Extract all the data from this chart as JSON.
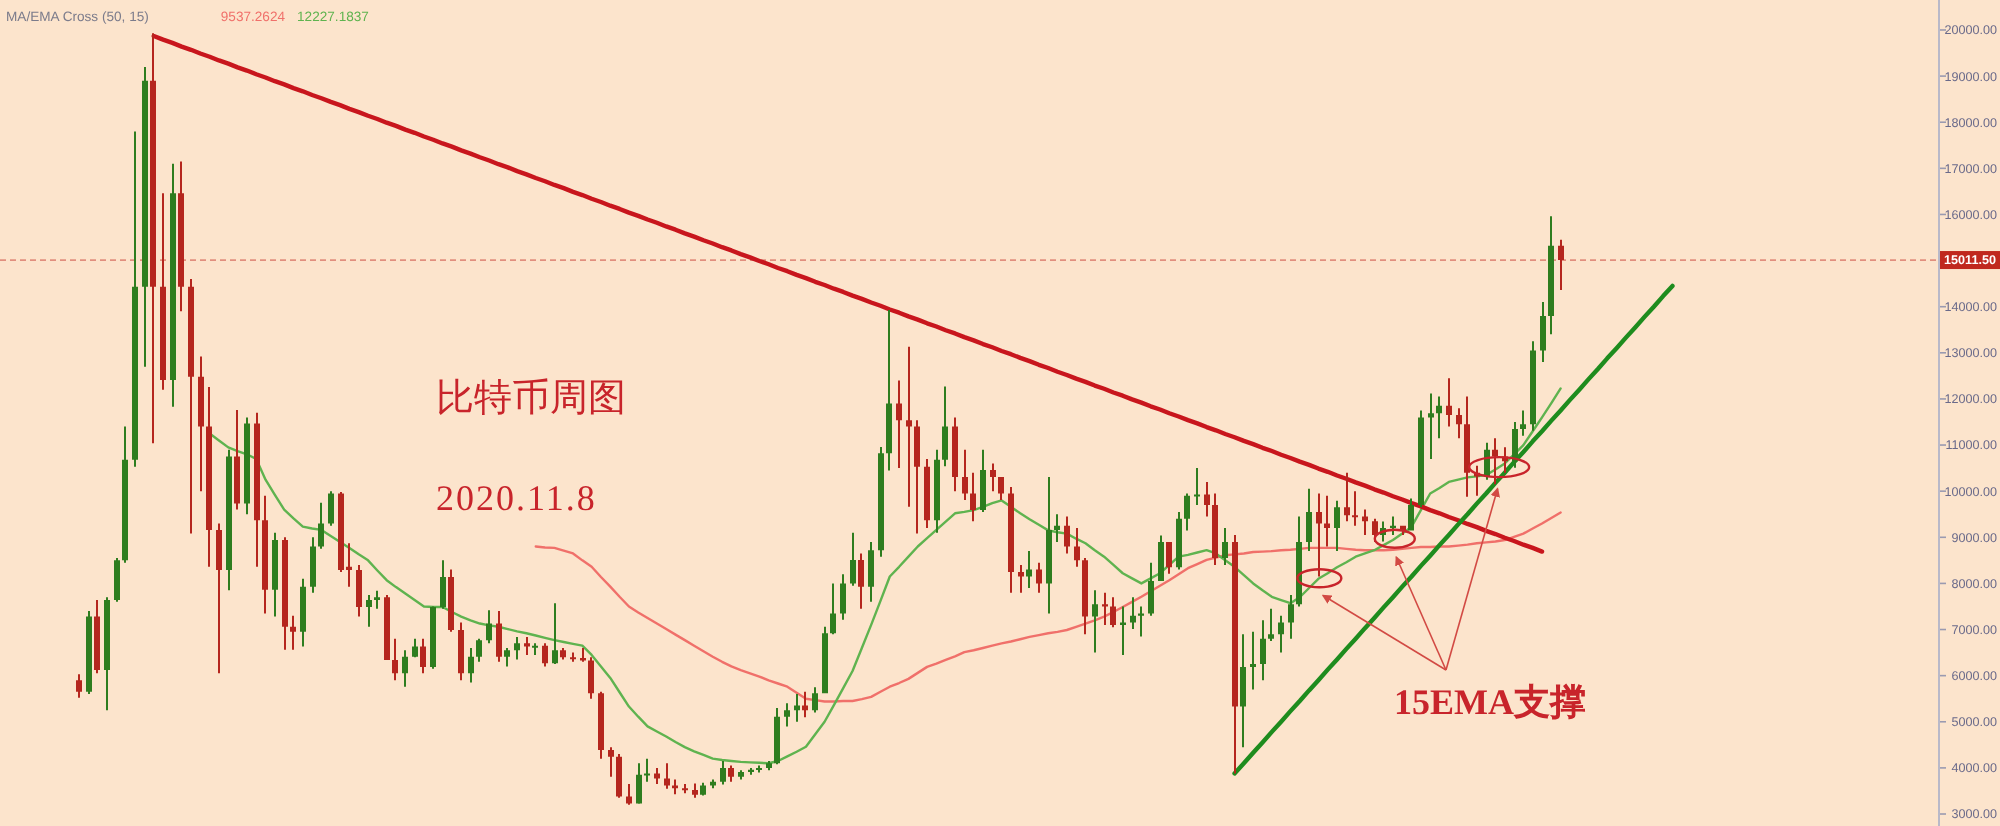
{
  "chart_data": {
    "type": "candlestick",
    "title": "比特币周图",
    "subtitle": "2020.11.8",
    "legend_title": "MA/EMA Cross (50, 15)",
    "tick_labels": "y",
    "categories": [
      null,
      null,
      null,
      null,
      null,
      null,
      null,
      null,
      null,
      null,
      null,
      null,
      null,
      null,
      null,
      null,
      null,
      null,
      null,
      null,
      null,
      null,
      null,
      null,
      null,
      null,
      null,
      null,
      null,
      null,
      null,
      null,
      null,
      null,
      null,
      null,
      null,
      null,
      null,
      null,
      null,
      null,
      null,
      null,
      null,
      null,
      null,
      null,
      null,
      null,
      null,
      null,
      null,
      null,
      null,
      null,
      null,
      null,
      null,
      null,
      null,
      null,
      null,
      null,
      null,
      null,
      null,
      null,
      null,
      null,
      null,
      null,
      null,
      null,
      null,
      null,
      null,
      null,
      null,
      null,
      null,
      null,
      null,
      null,
      null,
      null,
      null,
      null,
      null,
      null,
      null,
      null,
      null,
      null,
      null,
      null,
      null,
      null,
      null,
      null,
      null,
      null,
      null,
      null,
      null,
      null,
      null,
      null,
      null,
      null,
      null,
      null,
      null,
      null,
      null,
      null,
      null,
      null,
      null,
      null,
      null,
      null,
      null,
      null,
      null,
      null,
      null,
      null,
      null,
      null,
      null,
      null,
      null,
      null,
      null,
      null,
      null,
      null,
      null,
      null,
      null,
      null,
      null,
      null,
      null,
      null,
      null,
      null,
      null,
      null,
      null,
      null,
      null,
      null,
      null,
      null,
      null,
      null,
      null,
      null,
      null,
      null,
      null,
      null,
      null,
      null,
      null,
      null,
      null,
      null,
      null,
      null,
      null,
      null,
      null,
      null,
      null,
      null,
      null,
      null,
      null,
      null,
      null,
      null,
      null,
      null,
      null,
      null,
      null,
      null,
      null,
      null,
      null,
      null,
      null,
      null,
      null,
      null,
      null,
      null,
      null,
      null,
      null,
      null,
      null,
      null,
      null,
      null
    ],
    "ohlc": [
      null,
      null,
      null,
      null,
      null,
      null,
      null,
      null,
      [
        5900,
        6030,
        5520,
        5650
      ],
      [
        5650,
        7400,
        5600,
        7280
      ],
      [
        7280,
        7640,
        6050,
        6120
      ],
      [
        6120,
        7700,
        5250,
        7640
      ],
      [
        7640,
        8550,
        7600,
        8500
      ],
      [
        8500,
        11400,
        8450,
        10680
      ],
      [
        10680,
        17800,
        10530,
        14430
      ],
      [
        14430,
        19200,
        12700,
        18900
      ],
      [
        18900,
        19930,
        11040,
        14430
      ],
      [
        14430,
        16460,
        12200,
        12410
      ],
      [
        12410,
        17100,
        11830,
        16460
      ],
      [
        16460,
        17150,
        13900,
        14430
      ],
      [
        14430,
        14600,
        9080,
        12480
      ],
      [
        12480,
        12920,
        10000,
        11400
      ],
      [
        11400,
        12260,
        8360,
        9160
      ],
      [
        9160,
        9300,
        6050,
        8290
      ],
      [
        8290,
        10900,
        7850,
        10750
      ],
      [
        10750,
        11760,
        9600,
        9735
      ],
      [
        9735,
        11600,
        9500,
        11470
      ],
      [
        11470,
        11700,
        8360,
        9370
      ],
      [
        9370,
        9900,
        7350,
        7860
      ],
      [
        7860,
        9100,
        7280,
        8940
      ],
      [
        8940,
        9000,
        6560,
        7060
      ],
      [
        7060,
        7300,
        6560,
        6950
      ],
      [
        6950,
        8100,
        6630,
        7930
      ],
      [
        7930,
        9000,
        7800,
        8800
      ],
      [
        8800,
        9750,
        8750,
        9300
      ],
      [
        9300,
        10000,
        9250,
        9950
      ],
      [
        9950,
        9980,
        8250,
        8290
      ],
      [
        8360,
        8870,
        7930,
        8290
      ],
      [
        8290,
        8400,
        7280,
        7490
      ],
      [
        7490,
        7750,
        7060,
        7640
      ],
      [
        7640,
        7840,
        7450,
        7700
      ],
      [
        7700,
        7750,
        6340,
        6340
      ],
      [
        6340,
        6800,
        5900,
        6050
      ],
      [
        6050,
        6550,
        5760,
        6410
      ],
      [
        6410,
        6800,
        6400,
        6630
      ],
      [
        6630,
        6800,
        6050,
        6190
      ],
      [
        6190,
        7500,
        6150,
        7490
      ],
      [
        7490,
        8500,
        7450,
        8140
      ],
      [
        8140,
        8300,
        6950,
        6990
      ],
      [
        6990,
        7150,
        5900,
        6050
      ],
      [
        6050,
        6600,
        5850,
        6410
      ],
      [
        6410,
        6800,
        6300,
        6770
      ],
      [
        6770,
        7420,
        6700,
        7130
      ],
      [
        7130,
        7400,
        6300,
        6410
      ],
      [
        6410,
        6600,
        6200,
        6550
      ],
      [
        6550,
        6840,
        6350,
        6700
      ],
      [
        6700,
        6840,
        6450,
        6630
      ],
      [
        6630,
        6700,
        6450,
        6650
      ],
      [
        6650,
        6700,
        6200,
        6270
      ],
      [
        6270,
        7570,
        6250,
        6550
      ],
      [
        6550,
        6600,
        6350,
        6400
      ],
      [
        6400,
        6500,
        6300,
        6380
      ],
      [
        6380,
        6600,
        6300,
        6330
      ],
      [
        6330,
        6400,
        5500,
        5620
      ],
      [
        5620,
        5650,
        4200,
        4390
      ],
      [
        4390,
        4450,
        3810,
        4240
      ],
      [
        4240,
        4300,
        3350,
        3380
      ],
      [
        3380,
        3650,
        3200,
        3230
      ],
      [
        3230,
        4100,
        3220,
        3850
      ],
      [
        3850,
        4200,
        3700,
        3880
      ],
      [
        3880,
        4000,
        3650,
        3770
      ],
      [
        3770,
        4100,
        3550,
        3620
      ],
      [
        3620,
        3750,
        3430,
        3560
      ],
      [
        3560,
        3650,
        3450,
        3520
      ],
      [
        3520,
        3660,
        3350,
        3420
      ],
      [
        3420,
        3680,
        3400,
        3620
      ],
      [
        3620,
        3750,
        3560,
        3700
      ],
      [
        3700,
        4150,
        3640,
        4000
      ],
      [
        4000,
        4050,
        3700,
        3810
      ],
      [
        3810,
        3950,
        3750,
        3910
      ],
      [
        3910,
        4000,
        3850,
        3960
      ],
      [
        3960,
        4050,
        3900,
        4000
      ],
      [
        4000,
        4150,
        3950,
        4100
      ],
      [
        4100,
        5300,
        4080,
        5110
      ],
      [
        5110,
        5400,
        4900,
        5250
      ],
      [
        5250,
        5600,
        5000,
        5350
      ],
      [
        5350,
        5650,
        5100,
        5250
      ],
      [
        5250,
        5750,
        5200,
        5620
      ],
      [
        5620,
        7060,
        5620,
        6920
      ],
      [
        6920,
        8000,
        6900,
        7350
      ],
      [
        7350,
        8200,
        7210,
        8000
      ],
      [
        8000,
        9100,
        7950,
        8510
      ],
      [
        8510,
        8650,
        7450,
        7930
      ],
      [
        7930,
        8900,
        7600,
        8720
      ],
      [
        8720,
        10960,
        8580,
        10820
      ],
      [
        10820,
        13930,
        10450,
        11900
      ],
      [
        11900,
        12400,
        10500,
        11540
      ],
      [
        11540,
        13130,
        9660,
        11400
      ],
      [
        11400,
        11540,
        9080,
        10530
      ],
      [
        10530,
        10700,
        9200,
        9370
      ],
      [
        9370,
        10900,
        9100,
        10680
      ],
      [
        10680,
        12270,
        10540,
        11400
      ],
      [
        11400,
        11600,
        10000,
        10310
      ],
      [
        10310,
        10900,
        9810,
        9950
      ],
      [
        9950,
        10400,
        9350,
        9590
      ],
      [
        9590,
        10900,
        9550,
        10460
      ],
      [
        10460,
        10600,
        10000,
        10310
      ],
      [
        10310,
        10310,
        9810,
        9950
      ],
      [
        9950,
        10090,
        7800,
        8250
      ],
      [
        8250,
        8400,
        7800,
        8150
      ],
      [
        8150,
        8700,
        7900,
        8300
      ],
      [
        8300,
        8450,
        7800,
        8000
      ],
      [
        8000,
        10310,
        7350,
        9160
      ],
      [
        9160,
        9500,
        8900,
        9250
      ],
      [
        9250,
        9450,
        8650,
        8800
      ],
      [
        8800,
        9200,
        8360,
        8500
      ],
      [
        8500,
        8550,
        6900,
        7280
      ],
      [
        7280,
        7850,
        6500,
        7550
      ],
      [
        7550,
        7800,
        7100,
        7500
      ],
      [
        7500,
        7700,
        7050,
        7100
      ],
      [
        7100,
        7500,
        6450,
        7150
      ],
      [
        7150,
        7700,
        7010,
        7300
      ],
      [
        7300,
        7500,
        6850,
        7350
      ],
      [
        7350,
        8450,
        7300,
        8050
      ],
      [
        8050,
        9040,
        8050,
        8900
      ],
      [
        8900,
        8900,
        8210,
        8350
      ],
      [
        8350,
        9550,
        8300,
        9400
      ],
      [
        9400,
        9950,
        9150,
        9900
      ],
      [
        9900,
        10500,
        9700,
        9930
      ],
      [
        9930,
        10200,
        9450,
        9700
      ],
      [
        9700,
        9950,
        8400,
        8550
      ],
      [
        8550,
        9200,
        8400,
        8900
      ],
      [
        8900,
        9050,
        3880,
        5330
      ],
      [
        5330,
        6900,
        4450,
        6190
      ],
      [
        6190,
        6950,
        5700,
        6250
      ],
      [
        6250,
        7200,
        5900,
        6800
      ],
      [
        6800,
        7450,
        6750,
        6900
      ],
      [
        6900,
        7300,
        6500,
        7150
      ],
      [
        7150,
        7750,
        6800,
        7550
      ],
      [
        7550,
        9450,
        7500,
        8900
      ],
      [
        8900,
        10050,
        8700,
        9550
      ],
      [
        9550,
        9950,
        8150,
        9300
      ],
      [
        9300,
        9900,
        8800,
        9200
      ],
      [
        9200,
        9790,
        8700,
        9650
      ],
      [
        9650,
        10400,
        9350,
        9480
      ],
      [
        9480,
        10000,
        9250,
        9450
      ],
      [
        9450,
        9600,
        9050,
        9350
      ],
      [
        9350,
        9400,
        8900,
        9050
      ],
      [
        9050,
        9340,
        8910,
        9200
      ],
      [
        9200,
        9450,
        9050,
        9250
      ],
      [
        9250,
        9250,
        9050,
        9150
      ],
      [
        9150,
        9840,
        9150,
        9700
      ],
      [
        9700,
        11750,
        9650,
        11600
      ],
      [
        11600,
        12120,
        10700,
        11690
      ],
      [
        11690,
        12050,
        11150,
        11850
      ],
      [
        11850,
        12450,
        11400,
        11650
      ],
      [
        11650,
        11800,
        11150,
        11450
      ],
      [
        11450,
        12050,
        9880,
        10400
      ],
      [
        10400,
        10550,
        9900,
        10320
      ],
      [
        10320,
        11050,
        10250,
        10900
      ],
      [
        10900,
        11150,
        10150,
        10750
      ],
      [
        10750,
        10950,
        10400,
        10650
      ],
      [
        10650,
        11500,
        10510,
        11350
      ],
      [
        11350,
        11750,
        11200,
        11450
      ],
      [
        11450,
        13250,
        11310,
        13050
      ],
      [
        13050,
        14100,
        12800,
        13800
      ],
      [
        13800,
        15960,
        13400,
        15320
      ],
      [
        15320,
        15450,
        14360,
        15011.5
      ],
      null,
      null,
      null,
      null,
      null,
      null,
      null,
      null,
      null,
      null,
      null,
      null,
      null,
      null,
      null,
      null,
      null,
      null,
      null,
      null,
      null,
      null,
      null,
      null,
      null,
      null,
      null,
      null,
      null,
      null,
      null,
      null,
      null,
      null,
      null,
      null,
      null,
      null,
      null,
      null
    ],
    "colors": [
      null,
      null,
      null,
      null,
      null,
      null,
      null,
      null,
      "#b5261e",
      "#2e7d1f",
      "#b5261e",
      "#2e7d1f",
      "#2e7d1f",
      "#2e7d1f",
      "#2e7d1f",
      "#2e7d1f",
      "#b5261e",
      "#b5261e",
      "#2e7d1f",
      "#b5261e",
      "#b5261e",
      "#b5261e",
      "#b5261e",
      "#b5261e",
      "#2e7d1f",
      "#b5261e",
      "#2e7d1f",
      "#b5261e",
      "#b5261e",
      "#2e7d1f",
      "#b5261e",
      "#b5261e",
      "#2e7d1f",
      "#2e7d1f",
      "#2e7d1f",
      "#2e7d1f",
      "#b5261e",
      "#b5261e",
      "#b5261e",
      "#2e7d1f",
      "#2e7d1f",
      "#b5261e",
      "#b5261e",
      "#2e7d1f",
      "#2e7d1f",
      "#b5261e",
      "#2e7d1f",
      "#2e7d1f",
      "#b5261e",
      "#b5261e",
      "#2e7d1f",
      "#2e7d1f",
      "#2e7d1f",
      "#b5261e",
      "#2e7d1f",
      "#2e7d1f",
      "#b5261e",
      "#2e7d1f",
      "#b5261e",
      "#2e7d1f",
      "#b5261e",
      "#b5261e",
      "#b5261e",
      "#b5261e",
      "#b5261e",
      "#b5261e",
      "#b5261e",
      "#b5261e",
      "#2e7d1f",
      "#2e7d1f",
      "#b5261e",
      "#b5261e",
      "#b5261e",
      "#b5261e",
      "#b5261e",
      "#2e7d1f",
      "#2e7d1f",
      "#2e7d1f",
      "#b5261e",
      "#2e7d1f",
      "#2e7d1f",
      "#2e7d1f",
      "#2e7d1f",
      "#2e7d1f",
      "#2e7d1f",
      "#2e7d1f",
      "#b5261e",
      "#2e7d1f",
      "#2e7d1f",
      "#2e7d1f",
      "#2e7d1f",
      "#2e7d1f",
      "#b5261e",
      "#2e7d1f",
      "#2e7d1f",
      "#2e7d1f",
      "#b5261e",
      "#b5261e",
      "#b5261e",
      "#b5261e",
      "#2e7d1f",
      "#2e7d1f",
      "#b5261e",
      "#b5261e",
      "#b5261e",
      "#2e7d1f",
      "#b5261e",
      "#b5261e",
      "#b5261e",
      "#b5261e",
      "#2e7d1f",
      "#b5261e",
      "#2e7d1f",
      "#2e7d1f",
      "#b5261e",
      "#b5261e",
      "#b5261e",
      "#2e7d1f",
      "#b5261e",
      "#b5261e",
      "#2e7d1f",
      "#2e7d1f",
      "#2e7d1f",
      "#2e7d1f",
      "#2e7d1f",
      "#b5261e",
      "#2e7d1f",
      "#2e7d1f",
      "#2e7d1f",
      "#b5261e",
      "#b5261e",
      "#2e7d1f",
      "#b5261e",
      "#2e7d1f",
      "#2e7d1f",
      "#2e7d1f",
      "#2e7d1f",
      "#2e7d1f",
      "#2e7d1f",
      "#2e7d1f",
      "#2e7d1f",
      "#b5261e",
      "#b5261e",
      "#2e7d1f",
      "#b5261e",
      "#b5261e",
      "#b5261e",
      "#b5261e",
      "#2e7d1f",
      "#2e7d1f",
      "#b5261e",
      "#2e7d1f",
      "#2e7d1f",
      "#2e7d1f",
      "#2e7d1f",
      "#b5261e",
      "#b5261e",
      "#b5261e",
      "#b5261e",
      "#2e7d1f",
      "#b5261e",
      "#b5261e",
      "#2e7d1f",
      "#2e7d1f",
      "#2e7d1f",
      "#2e7d1f",
      "#2e7d1f",
      "#b5261e",
      null,
      null,
      null,
      null,
      null,
      null,
      null,
      null,
      null,
      null,
      null,
      null,
      null,
      null,
      null,
      null,
      null,
      null,
      null,
      null,
      null,
      null,
      null,
      null,
      null,
      null,
      null,
      null,
      null,
      null,
      null,
      null,
      null,
      null,
      null,
      null,
      null,
      null,
      null,
      null
    ],
    "series": [
      {
        "type": "line",
        "name": "9537.2624",
        "color": "#f0706a",
        "values": [
          null,
          null,
          null,
          null,
          null,
          null,
          null,
          null,
          null,
          null,
          null,
          null,
          null,
          null,
          null,
          null,
          null,
          null,
          null,
          null,
          null,
          null,
          null,
          null,
          null,
          null,
          null,
          null,
          null,
          null,
          null,
          null,
          null,
          null,
          null,
          null,
          null,
          null,
          null,
          null,
          null,
          null,
          null,
          null,
          null,
          null,
          null,
          null,
          null,
          null,
          null,
          null,
          null,
          null,
          null,
          null,
          null,
          8800,
          8780,
          8770,
          8710,
          8650,
          8500,
          8360,
          8140,
          7930,
          7710,
          7500,
          7370,
          7250,
          7130,
          7010,
          6890,
          6770,
          6650,
          6530,
          6410,
          6300,
          6200,
          6120,
          6050,
          5980,
          5900,
          5830,
          5760,
          5630,
          5500,
          5470,
          5440,
          5440,
          5450,
          5450,
          5490,
          5540,
          5650,
          5760,
          5840,
          5930,
          6060,
          6190,
          6260,
          6340,
          6420,
          6510,
          6550,
          6600,
          6650,
          6700,
          6740,
          6790,
          6840,
          6880,
          6920,
          6950,
          6990,
          7060,
          7130,
          7200,
          7280,
          7380,
          7490,
          7600,
          7710,
          7830,
          7950,
          8070,
          8200,
          8330,
          8420,
          8510,
          8560,
          8610,
          8630,
          8650,
          8680,
          8690,
          8700,
          8720,
          8730,
          8750,
          8770,
          8770,
          8770,
          8770,
          8750,
          8730,
          8720,
          8720,
          8720,
          8730,
          8750,
          8770,
          8790,
          8790,
          8800,
          8800,
          8820,
          8840,
          8870,
          8890,
          8910,
          8940,
          9010,
          9080,
          9190,
          9300,
          9420,
          9537,
          null,
          null,
          null,
          null,
          null,
          null,
          null,
          null,
          null,
          null,
          null,
          null,
          null,
          null,
          null,
          null,
          null,
          null,
          null,
          null,
          null,
          null,
          null,
          null,
          null,
          null,
          null,
          null,
          null,
          null,
          null,
          null,
          null,
          null,
          null,
          null,
          null,
          null,
          null,
          null
        ]
      },
      {
        "type": "line",
        "name": "12227.1837",
        "color": "#5fb34f",
        "values": [
          null,
          null,
          null,
          null,
          null,
          null,
          null,
          null,
          null,
          null,
          null,
          null,
          null,
          null,
          null,
          null,
          null,
          null,
          null,
          null,
          null,
          null,
          11250,
          11100,
          10950,
          10870,
          10800,
          10700,
          10250,
          9920,
          9600,
          9410,
          9230,
          9190,
          9160,
          9030,
          8900,
          8770,
          8630,
          8500,
          8280,
          8070,
          7920,
          7780,
          7640,
          7500,
          7490,
          7490,
          7380,
          7280,
          7200,
          7130,
          7090,
          7060,
          7010,
          6960,
          6920,
          6870,
          6820,
          6770,
          6730,
          6690,
          6650,
          6450,
          6200,
          5950,
          5640,
          5330,
          5110,
          4900,
          4790,
          4680,
          4560,
          4450,
          4360,
          4280,
          4200,
          4170,
          4150,
          4130,
          4120,
          4110,
          4100,
          4150,
          4250,
          4350,
          4460,
          4730,
          5000,
          5360,
          5730,
          6100,
          6600,
          7100,
          7620,
          8150,
          8360,
          8580,
          8800,
          8980,
          9160,
          9340,
          9520,
          9550,
          9590,
          9660,
          9740,
          9800,
          9660,
          9520,
          9390,
          9270,
          9150,
          9110,
          9080,
          8970,
          8870,
          8720,
          8580,
          8400,
          8220,
          8110,
          8000,
          8110,
          8220,
          8400,
          8580,
          8620,
          8670,
          8720,
          8650,
          8500,
          8360,
          8180,
          8000,
          7850,
          7710,
          7640,
          7570,
          7700,
          7900,
          8100,
          8220,
          8350,
          8460,
          8580,
          8650,
          8720,
          8830,
          8940,
          9080,
          9230,
          9590,
          9950,
          10070,
          10200,
          10250,
          10300,
          10320,
          10350,
          10470,
          10600,
          10800,
          11000,
          11300,
          11600,
          11910,
          12227,
          null,
          null,
          null,
          null,
          null,
          null,
          null,
          null,
          null,
          null,
          null,
          null,
          null,
          null,
          null,
          null,
          null,
          null,
          null,
          null,
          null,
          null,
          null,
          null,
          null,
          null,
          null,
          null,
          null,
          null,
          null,
          null,
          null,
          null,
          null,
          null,
          null,
          null,
          null,
          null
        ]
      },
      {
        "type": "line",
        "color": "#c8161d",
        "values": [
          null,
          null,
          null,
          null,
          null,
          null,
          null,
          null,
          null,
          null,
          null,
          null,
          null,
          null,
          null,
          null,
          19870,
          19790,
          19720,
          19640,
          19570,
          19490,
          19420,
          19340,
          19270,
          19190,
          19120,
          19040,
          18970,
          18890,
          18820,
          18740,
          18670,
          18590,
          18520,
          18440,
          18370,
          18290,
          18220,
          18140,
          18070,
          17990,
          17920,
          17840,
          17770,
          17690,
          17620,
          17540,
          17470,
          17390,
          17320,
          17240,
          17170,
          17090,
          17020,
          16940,
          16870,
          16790,
          16720,
          16640,
          16570,
          16490,
          16420,
          16340,
          16270,
          16190,
          16120,
          16040,
          15970,
          15890,
          15820,
          15740,
          15670,
          15590,
          15520,
          15440,
          15370,
          15290,
          15220,
          15140,
          15070,
          14990,
          14920,
          14840,
          14770,
          14690,
          14620,
          14540,
          14470,
          14390,
          14320,
          14240,
          14170,
          14090,
          14020,
          13940,
          13870,
          13790,
          13720,
          13640,
          13570,
          13490,
          13420,
          13340,
          13270,
          13190,
          13120,
          13040,
          12970,
          12890,
          12820,
          12740,
          12670,
          12590,
          12520,
          12440,
          12370,
          12290,
          12220,
          12140,
          12070,
          11990,
          11920,
          11840,
          11770,
          11690,
          11620,
          11540,
          11470,
          11390,
          11320,
          11240,
          11170,
          11090,
          11020,
          10940,
          10870,
          10790,
          10720,
          10640,
          10570,
          10490,
          10420,
          10340,
          10270,
          10190,
          10120,
          10040,
          9970,
          9890,
          9820,
          9740,
          9670,
          9590,
          9520,
          9440,
          9370,
          9290,
          9220,
          9140,
          9070,
          8990,
          8920,
          8840,
          8770,
          8690,
          null,
          null,
          null,
          null,
          null,
          null,
          null,
          null,
          null,
          null,
          null,
          null,
          null,
          null,
          null,
          null,
          null,
          null,
          null,
          null,
          null,
          null,
          null,
          null,
          null,
          null,
          null,
          null,
          null,
          null,
          null,
          null,
          null,
          null,
          null,
          null,
          null,
          null,
          null,
          null,
          null,
          null
        ]
      },
      {
        "type": "line",
        "color": "#1e8c1e",
        "values": [
          null,
          null,
          null,
          null,
          null,
          null,
          null,
          null,
          null,
          null,
          null,
          null,
          null,
          null,
          null,
          null,
          null,
          null,
          null,
          null,
          null,
          null,
          null,
          null,
          null,
          null,
          null,
          null,
          null,
          null,
          null,
          null,
          null,
          null,
          null,
          null,
          null,
          null,
          null,
          null,
          null,
          null,
          null,
          null,
          null,
          null,
          null,
          null,
          null,
          null,
          null,
          null,
          null,
          null,
          null,
          null,
          null,
          null,
          null,
          null,
          null,
          null,
          null,
          null,
          null,
          null,
          null,
          null,
          null,
          null,
          null,
          null,
          null,
          null,
          null,
          null,
          null,
          null,
          null,
          null,
          null,
          null,
          null,
          null,
          null,
          null,
          null,
          null,
          null,
          null,
          null,
          null,
          null,
          null,
          null,
          null,
          null,
          null,
          null,
          null,
          null,
          null,
          null,
          null,
          null,
          null,
          null,
          null,
          null,
          null,
          null,
          null,
          null,
          null,
          null,
          null,
          null,
          null,
          null,
          null,
          null,
          null,
          null,
          null,
          null,
          null,
          null,
          null,
          null,
          null,
          null,
          null,
          3880,
          4100,
          4330,
          4550,
          4780,
          5000,
          5230,
          5450,
          5680,
          5900,
          6130,
          6350,
          6580,
          6800,
          7030,
          7250,
          7480,
          7700,
          7930,
          8150,
          8380,
          8600,
          8830,
          9050,
          9280,
          9500,
          9730,
          9950,
          10180,
          10400,
          10630,
          10850,
          11080,
          11300,
          11530,
          11750,
          11980,
          12200,
          12430,
          12650,
          12880,
          13100,
          13330,
          13550,
          13780,
          14000,
          14230,
          14450,
          null,
          null,
          null,
          null,
          null,
          null,
          null,
          null,
          null,
          null,
          null,
          null,
          null,
          null,
          null,
          null,
          null,
          null,
          null,
          null,
          null,
          null,
          null,
          null,
          null,
          null,
          null,
          null
        ]
      }
    ],
    "ylim": [
      2740,
      20650
    ],
    "yticks": [
      {
        "value": 3000,
        "label": "3000.00"
      },
      {
        "value": 4000,
        "label": "4000.00"
      },
      {
        "value": 5000,
        "label": "5000.00"
      },
      {
        "value": 6000,
        "label": "6000.00"
      },
      {
        "value": 7000,
        "label": "7000.00"
      },
      {
        "value": 8000,
        "label": "8000.00"
      },
      {
        "value": 9000,
        "label": "9000.00"
      },
      {
        "value": 10000,
        "label": "10000.00"
      },
      {
        "value": 11000,
        "label": "11000.00"
      },
      {
        "value": 12000,
        "label": "12000.00"
      },
      {
        "value": 13000,
        "label": "13000.00"
      },
      {
        "value": 14000,
        "label": "14000.00"
      },
      {
        "value": 15000,
        "label": null
      },
      {
        "value": 16000,
        "label": "16000.00"
      },
      {
        "value": 17000,
        "label": "17000.00"
      },
      {
        "value": 18000,
        "label": "18000.00"
      },
      {
        "value": 19000,
        "label": "19000.00"
      },
      {
        "value": 20000,
        "label": "20000.00"
      }
    ],
    "ref_lines": [
      {
        "axis": "y",
        "value": 15011.5,
        "label": "15011.50",
        "color": "#c0281e",
        "line_style": "dashed"
      }
    ],
    "annotations": [
      "15EMA支撑"
    ]
  }
}
